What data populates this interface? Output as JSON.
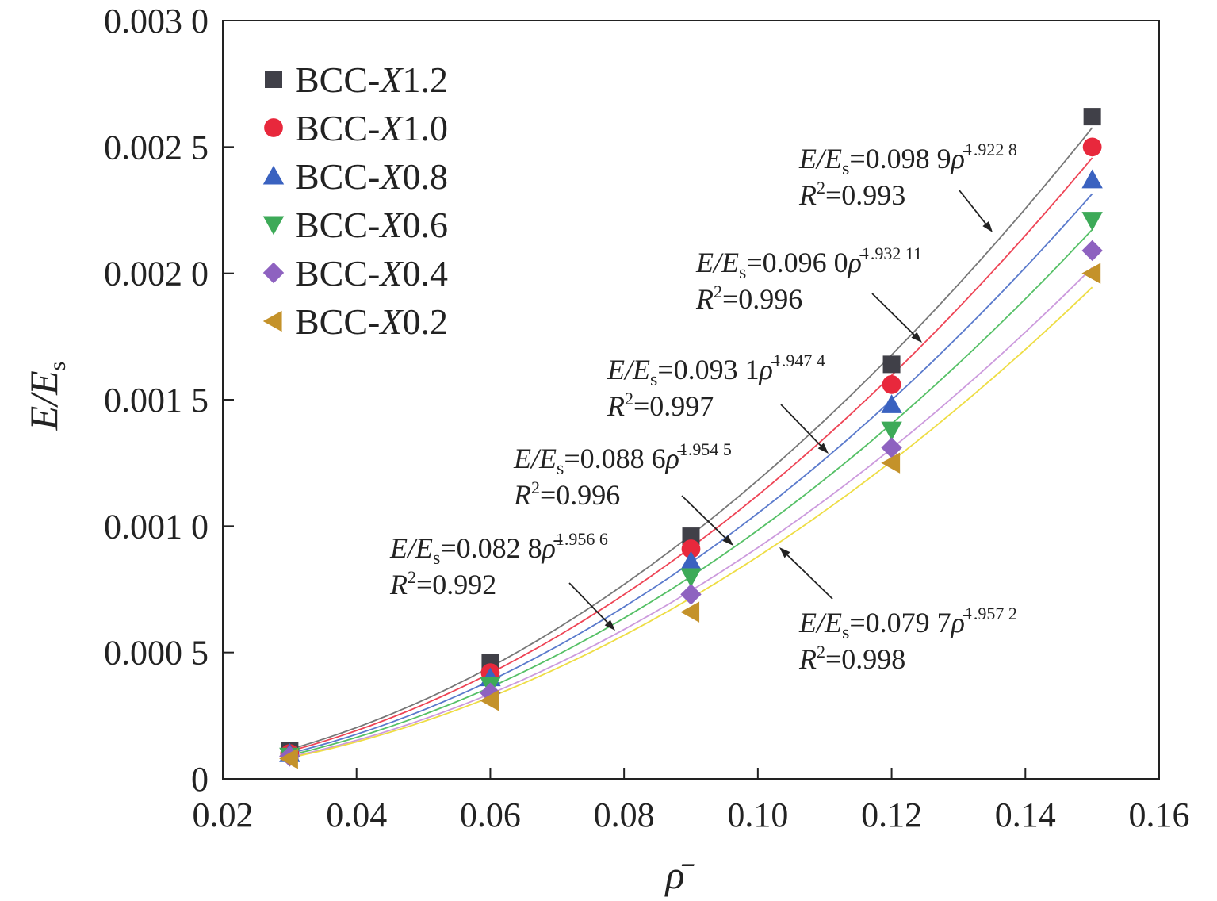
{
  "chart_data": {
    "type": "scatter",
    "xlabel": "ρ̄",
    "ylabel_main": "E/E",
    "ylabel_sub": "s",
    "xlim": [
      0.02,
      0.16
    ],
    "ylim": [
      0,
      0.003
    ],
    "x_ticks": [
      0.02,
      0.04,
      0.06,
      0.08,
      0.1,
      0.12,
      0.14,
      0.16
    ],
    "x_tick_labels": [
      "0.02",
      "0.04",
      "0.06",
      "0.08",
      "0.10",
      "0.12",
      "0.14",
      "0.16"
    ],
    "y_ticks": [
      0,
      0.0005,
      0.001,
      0.0015,
      0.002,
      0.0025,
      0.003
    ],
    "y_tick_labels": [
      "0",
      "0.000 5",
      "0.001 0",
      "0.001 5",
      "0.002 0",
      "0.002 5",
      "0.003 0"
    ],
    "grid": false,
    "legend_position": "top-left",
    "x": [
      0.03,
      0.06,
      0.09,
      0.12,
      0.15
    ],
    "series": [
      {
        "name_prefix": "BCC-",
        "name_italic": "X",
        "name_suffix": "1.2",
        "marker": "square",
        "color": "#404048",
        "line_color": "#777777",
        "values": [
          0.00011,
          0.00046,
          0.00096,
          0.00164,
          0.00262
        ],
        "fit": {
          "coef": 0.0989,
          "exp": 1.9228
        }
      },
      {
        "name_prefix": "BCC-",
        "name_italic": "X",
        "name_suffix": "1.0",
        "marker": "circle",
        "color": "#e8283c",
        "line_color": "#ee4455",
        "values": [
          0.0001,
          0.00042,
          0.00091,
          0.00156,
          0.0025
        ],
        "fit": {
          "coef": 0.096,
          "exp": 1.93211
        }
      },
      {
        "name_prefix": "BCC-",
        "name_italic": "X",
        "name_suffix": "0.8",
        "marker": "triangle-up",
        "color": "#3a62c0",
        "line_color": "#5a7acc",
        "values": [
          0.0001,
          0.0004,
          0.00086,
          0.00148,
          0.00237
        ],
        "fit": {
          "coef": 0.0931,
          "exp": 1.9474
        }
      },
      {
        "name_prefix": "BCC-",
        "name_italic": "X",
        "name_suffix": "0.6",
        "marker": "triangle-down",
        "color": "#3daa58",
        "line_color": "#55c066",
        "values": [
          9e-05,
          0.00037,
          0.0008,
          0.00138,
          0.00221
        ],
        "fit": {
          "coef": 0.0886,
          "exp": 1.9545
        }
      },
      {
        "name_prefix": "BCC-",
        "name_italic": "X",
        "name_suffix": "0.4",
        "marker": "diamond",
        "color": "#8e62c0",
        "line_color": "#cc9add",
        "values": [
          9e-05,
          0.00034,
          0.00073,
          0.00131,
          0.00209
        ],
        "fit": {
          "coef": 0.0828,
          "exp": 1.9566
        }
      },
      {
        "name_prefix": "BCC-",
        "name_italic": "X",
        "name_suffix": "0.2",
        "marker": "triangle-left",
        "color": "#c4922a",
        "line_color": "#eedd44",
        "values": [
          8e-05,
          0.00031,
          0.00066,
          0.00125,
          0.002
        ],
        "fit": {
          "coef": 0.0797,
          "exp": 1.9572
        }
      }
    ],
    "annotations": [
      {
        "coef_text": "0.098 9",
        "exp_text": "1.922 8",
        "r2": "0.993"
      },
      {
        "coef_text": "0.096 0",
        "exp_text": "1.932 11",
        "r2": "0.996"
      },
      {
        "coef_text": "0.093 1",
        "exp_text": "1.947 4",
        "r2": "0.997"
      },
      {
        "coef_text": "0.088 6",
        "exp_text": "1.954 5",
        "r2": "0.996"
      },
      {
        "coef_text": "0.082 8",
        "exp_text": "1.956 6",
        "r2": "0.992"
      },
      {
        "coef_text": "0.079 7",
        "exp_text": "1.957 2",
        "r2": "0.998"
      }
    ],
    "annotation_text": {
      "lhs": "E/E",
      "lhs_sub": "s",
      "eq": "=",
      "rho": "ρ̄",
      "r2_label": "R",
      "r2_sup": "2"
    }
  }
}
